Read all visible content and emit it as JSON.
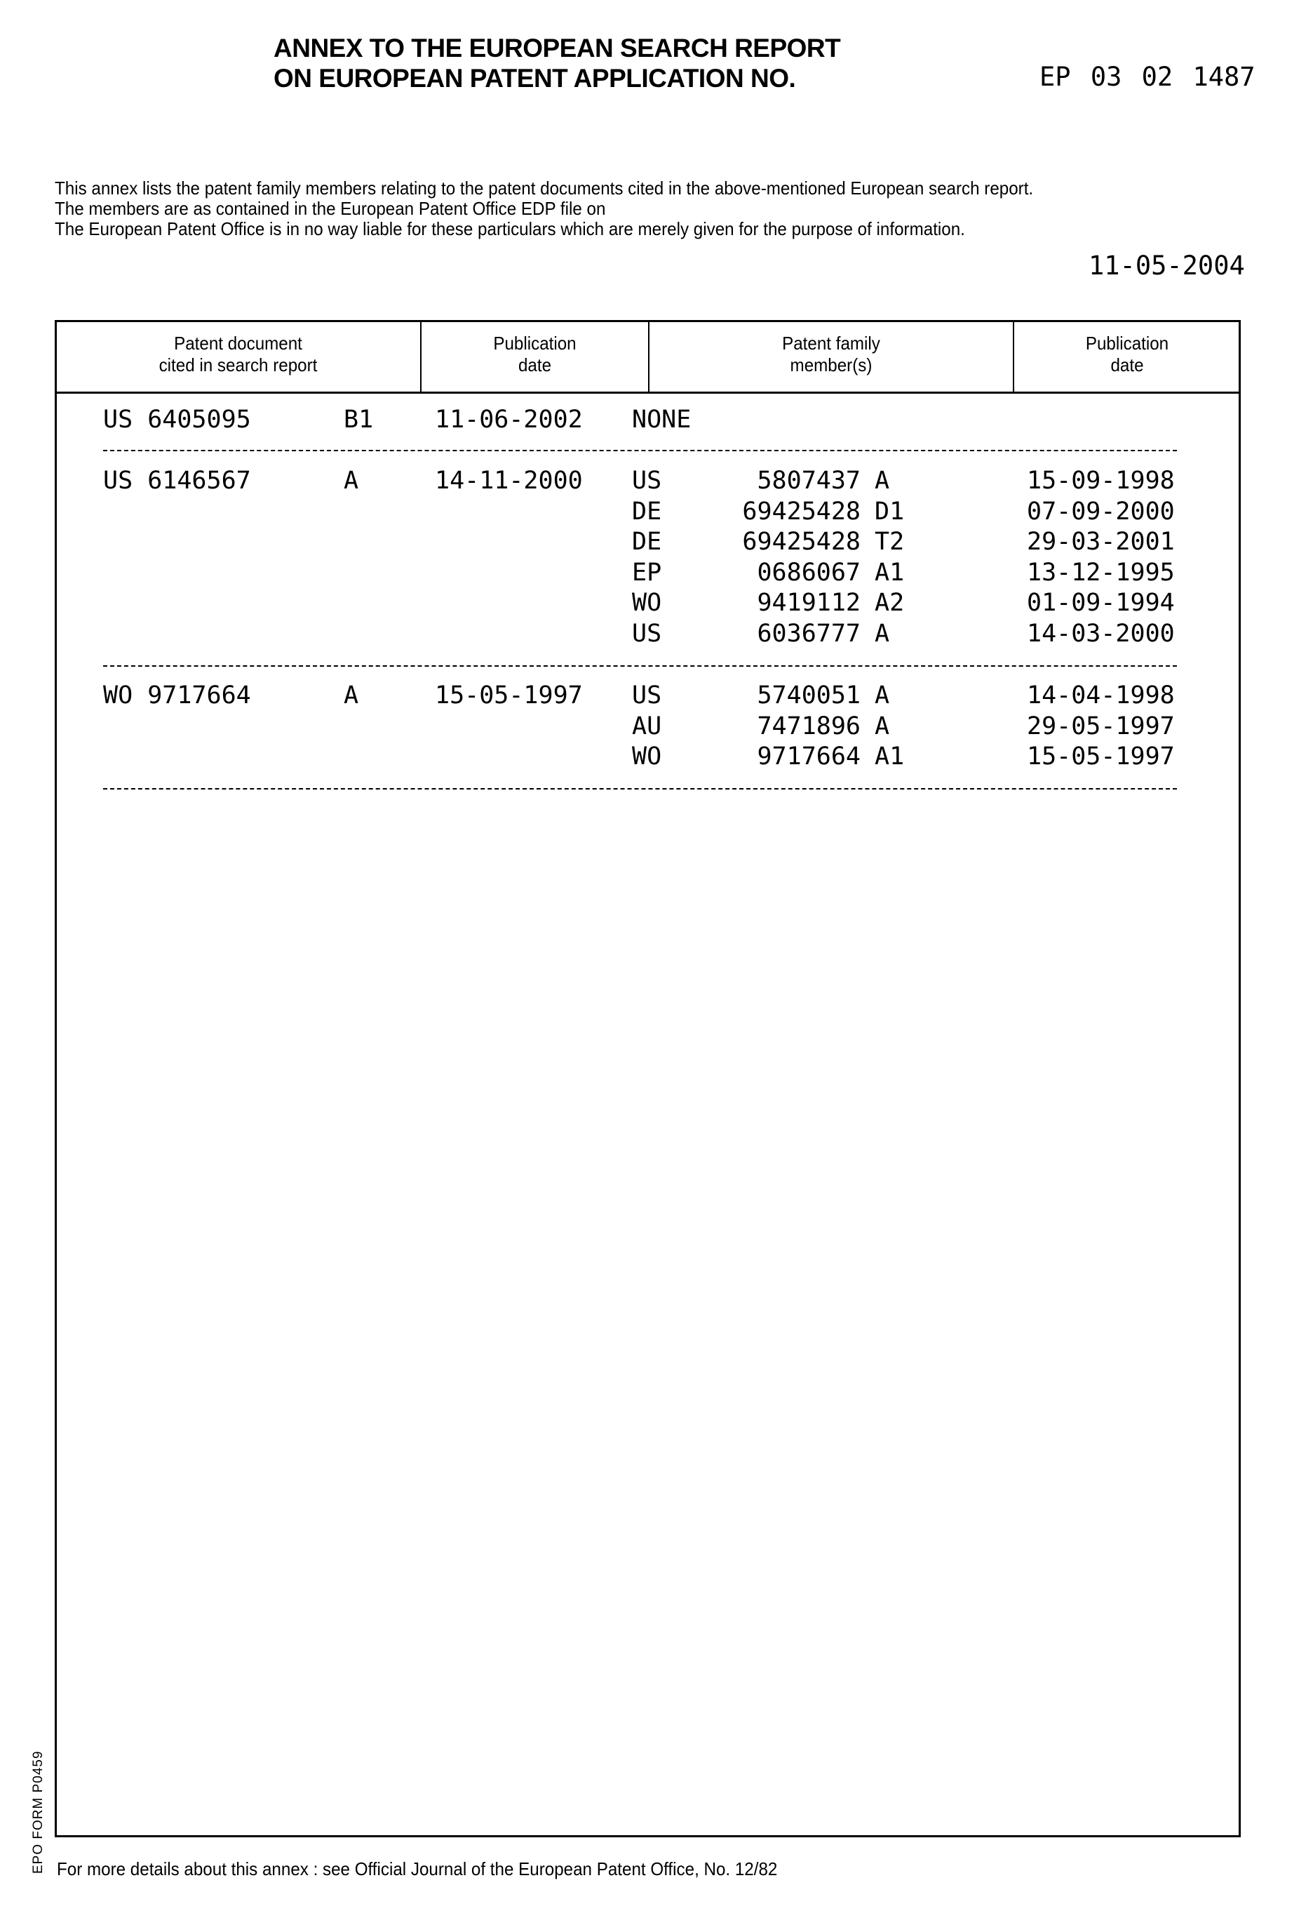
{
  "header": {
    "title_line1": "ANNEX TO THE EUROPEAN SEARCH REPORT",
    "title_line2": "ON EUROPEAN PATENT APPLICATION NO.",
    "application_no": "EP 03 02 1487"
  },
  "intro": {
    "line1": "This annex lists the patent family members relating to the patent documents cited in the above-mentioned European search report.",
    "line2": "The members are as contained in the European Patent Office EDP file on",
    "line3": "The European Patent Office is in no way liable for these particulars which are merely given for the purpose of information.",
    "date": "11-05-2004"
  },
  "table": {
    "headers": [
      {
        "l1": "Patent document",
        "l2": "cited in search report"
      },
      {
        "l1": "Publication",
        "l2": "date"
      },
      {
        "l1": "Patent family",
        "l2": "member(s)"
      },
      {
        "l1": "Publication",
        "l2": "date"
      }
    ],
    "groups": [
      {
        "doc": "US 6405095",
        "kind": "B1",
        "date": "11-06-2002",
        "members": [
          {
            "cc": "NONE",
            "num": "",
            "kind": "",
            "date": ""
          }
        ]
      },
      {
        "doc": "US 6146567",
        "kind": "A",
        "date": "14-11-2000",
        "members": [
          {
            "cc": "US",
            "num": "5807437",
            "kind": "A",
            "date": "15-09-1998"
          },
          {
            "cc": "DE",
            "num": "69425428",
            "kind": "D1",
            "date": "07-09-2000"
          },
          {
            "cc": "DE",
            "num": "69425428",
            "kind": "T2",
            "date": "29-03-2001"
          },
          {
            "cc": "EP",
            "num": "0686067",
            "kind": "A1",
            "date": "13-12-1995"
          },
          {
            "cc": "WO",
            "num": "9419112",
            "kind": "A2",
            "date": "01-09-1994"
          },
          {
            "cc": "US",
            "num": "6036777",
            "kind": "A",
            "date": "14-03-2000"
          }
        ]
      },
      {
        "doc": "WO 9717664",
        "kind": "A",
        "date": "15-05-1997",
        "members": [
          {
            "cc": "US",
            "num": "5740051",
            "kind": "A",
            "date": "14-04-1998"
          },
          {
            "cc": "AU",
            "num": "7471896",
            "kind": "A",
            "date": "29-05-1997"
          },
          {
            "cc": "WO",
            "num": "9717664",
            "kind": "A1",
            "date": "15-05-1997"
          }
        ]
      }
    ]
  },
  "footer": {
    "note": "For more details about this annex : see Official Journal of the European Patent Office, No. 12/82",
    "form_id": "EPO FORM P0459"
  }
}
